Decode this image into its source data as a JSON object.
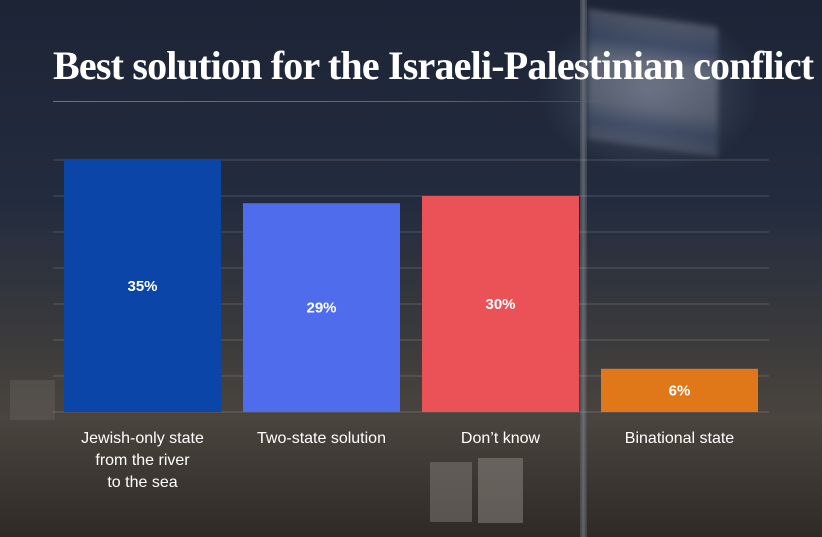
{
  "chart_data": {
    "type": "bar",
    "title": "Best solution for the Israeli-Palestinian conflict",
    "categories": [
      [
        "Jewish-only state",
        "from the river",
        "to the sea"
      ],
      [
        "Two-state solution"
      ],
      [
        "Don’t know"
      ],
      [
        "Binational state"
      ]
    ],
    "values": [
      35,
      29,
      30,
      6
    ],
    "value_labels": [
      "35%",
      "29%",
      "30%",
      "6%"
    ],
    "bar_colors": [
      "#0b45a8",
      "#4f6cec",
      "#ea5258",
      "#e07819"
    ],
    "ylim": [
      0,
      35
    ],
    "grid": true,
    "xlabel": "",
    "ylabel": ""
  }
}
